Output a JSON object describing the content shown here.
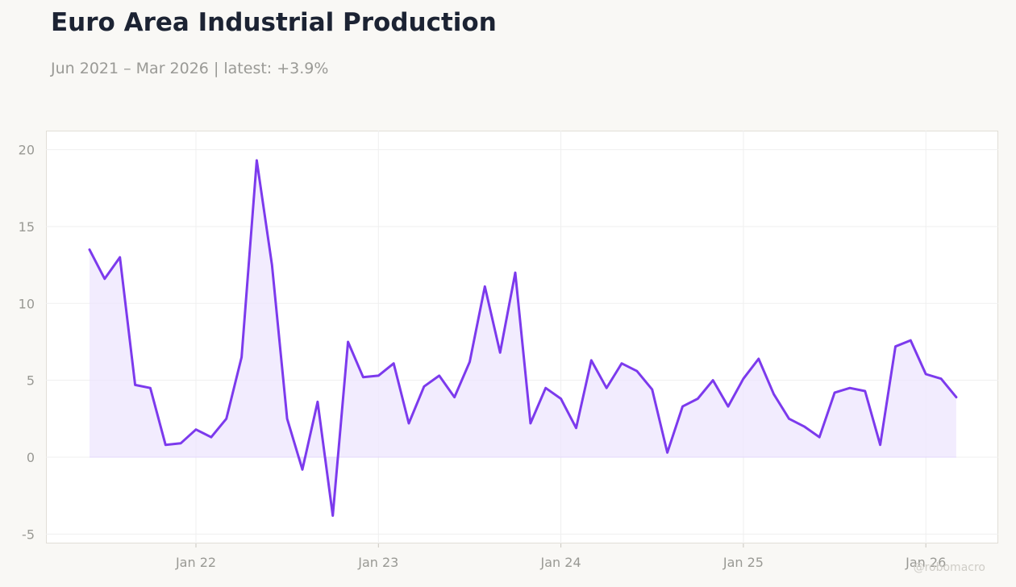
{
  "header": {
    "title": "Euro Area Industrial Production",
    "subtitle": "Jun 2021 – Mar 2026 | latest: +3.9%"
  },
  "watermark": "@robomacro",
  "colors": {
    "line": "#7c3aed",
    "fill": "#ede5fd",
    "grid": "#efefef",
    "background": "#f9f8f5"
  },
  "chart_data": {
    "type": "area",
    "title": "Euro Area Industrial Production",
    "subtitle": "Jun 2021 – Mar 2026 | latest: +3.9%",
    "xlabel": "",
    "ylabel": "",
    "x_start": "2021-06",
    "x_end": "2026-03",
    "x_ticks": [
      "Jan 22",
      "Jan 23",
      "Jan 24",
      "Jan 25",
      "Jan 26"
    ],
    "y_ticks": [
      -5,
      0,
      5,
      10,
      15,
      20
    ],
    "ylim": [
      -5.6,
      21
    ],
    "grid": true,
    "legend": "none",
    "series": [
      {
        "x": [
          "2021-06",
          "2021-07",
          "2021-08",
          "2021-09",
          "2021-10",
          "2021-11",
          "2021-12",
          "2022-01",
          "2022-02",
          "2022-03",
          "2022-04",
          "2022-05",
          "2022-06",
          "2022-07",
          "2022-08",
          "2022-09",
          "2022-10",
          "2022-11",
          "2022-12",
          "2023-01",
          "2023-02",
          "2023-03",
          "2023-04",
          "2023-05",
          "2023-06",
          "2023-07",
          "2023-08",
          "2023-09",
          "2023-10",
          "2023-11",
          "2023-12",
          "2024-01",
          "2024-02",
          "2024-03",
          "2024-04",
          "2024-05",
          "2024-06",
          "2024-07",
          "2024-08",
          "2024-09",
          "2024-10",
          "2024-11",
          "2024-12",
          "2025-01",
          "2025-02",
          "2025-03",
          "2025-04",
          "2025-05",
          "2025-06",
          "2025-07",
          "2025-08",
          "2025-09",
          "2025-10",
          "2025-11",
          "2025-12",
          "2026-01",
          "2026-02",
          "2026-03"
        ],
        "values": [
          13.5,
          11.6,
          13.0,
          4.7,
          4.5,
          0.8,
          0.9,
          1.8,
          1.3,
          2.5,
          6.5,
          19.3,
          12.5,
          2.5,
          -0.8,
          3.6,
          -3.8,
          7.5,
          5.2,
          5.3,
          6.1,
          2.2,
          4.6,
          5.3,
          3.9,
          6.2,
          11.1,
          6.8,
          12.0,
          2.2,
          4.5,
          3.8,
          1.9,
          6.3,
          4.5,
          6.1,
          5.6,
          4.4,
          0.3,
          3.3,
          3.8,
          5.0,
          3.3,
          5.1,
          6.4,
          4.1,
          2.5,
          2.0,
          1.3,
          4.2,
          4.5,
          4.3,
          0.8,
          7.2,
          7.6,
          5.4,
          5.1,
          3.9
        ]
      }
    ]
  }
}
